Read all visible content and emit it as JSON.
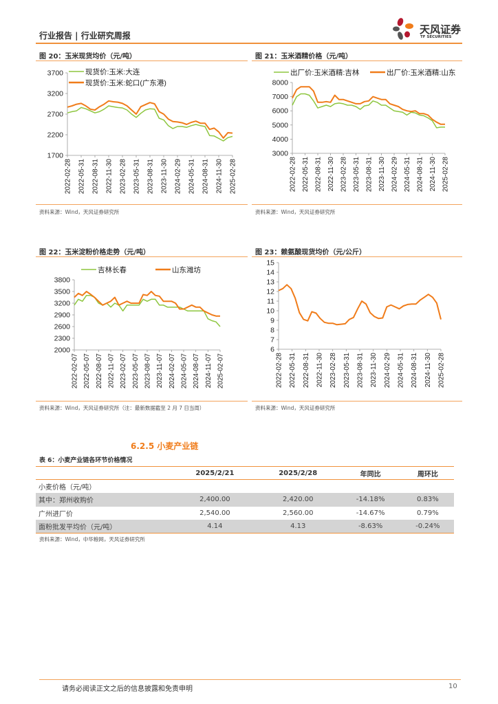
{
  "header": {
    "title": "行业报告 | 行业研究周报",
    "logo_text": "天风证券",
    "logo_sub": "TF SECURITIES"
  },
  "charts": [
    {
      "title": "图 20：玉米现货均价（元/吨）",
      "source": "资料来源：Wind，天风证券研究所",
      "type": "line",
      "yticks": [
        "3700",
        "3200",
        "2700",
        "2200",
        "1700"
      ],
      "ylim": [
        1700,
        3700
      ],
      "xticks": [
        "2022-02-28",
        "2022-05-31",
        "2022-08-31",
        "2022-11-30",
        "2023-02-28",
        "2023-05-31",
        "2023-08-31",
        "2023-11-30",
        "2024-02-29",
        "2024-05-31",
        "2024-08-31",
        "2024-11-30",
        "2025-02-28"
      ],
      "series": [
        {
          "name": "现货价:玉米:大连",
          "color": "#8dc63f",
          "values": [
            2730,
            2760,
            2780,
            2860,
            2830,
            2780,
            2730,
            2760,
            2820,
            2900,
            2880,
            2860,
            2850,
            2800,
            2700,
            2620,
            2720,
            2800,
            2830,
            2820,
            2600,
            2560,
            2420,
            2350,
            2400,
            2400,
            2380,
            2420,
            2450,
            2420,
            2400,
            2180,
            2170,
            2110,
            2050,
            2130,
            2160
          ]
        },
        {
          "name": "现货价:玉米:蛇口(广东港)",
          "color": "#f07c1a",
          "values": [
            2870,
            2900,
            2940,
            2960,
            2900,
            2820,
            2800,
            2880,
            2940,
            3020,
            3000,
            2990,
            2960,
            2900,
            2800,
            2700,
            2880,
            2930,
            2980,
            2950,
            2760,
            2700,
            2580,
            2520,
            2510,
            2490,
            2450,
            2500,
            2530,
            2480,
            2480,
            2330,
            2360,
            2270,
            2120,
            2250,
            2240
          ]
        }
      ]
    },
    {
      "title": "图 21：玉米酒精价格（元/吨）",
      "source": "资料来源：Wind，天风证券研究所",
      "type": "line",
      "yticks": [
        "8000",
        "7000",
        "6000",
        "5000",
        "4000",
        "3000"
      ],
      "ylim": [
        3000,
        8000
      ],
      "xticks": [
        "2022-02-28",
        "2022-05-31",
        "2022-08-31",
        "2022-11-30",
        "2023-02-28",
        "2023-05-31",
        "2023-08-31",
        "2023-11-30",
        "2024-02-29",
        "2024-05-31",
        "2024-08-31",
        "2024-11-30",
        "2025-02-28"
      ],
      "series": [
        {
          "name": "出厂价:玉米酒精:吉林",
          "color": "#8dc63f",
          "values": [
            6400,
            7000,
            7200,
            7200,
            7100,
            6700,
            6200,
            6300,
            6400,
            6300,
            6500,
            6550,
            6500,
            6400,
            6400,
            6300,
            6100,
            6350,
            6400,
            6700,
            6600,
            6400,
            6400,
            6200,
            6000,
            5950,
            5900,
            5700,
            5900,
            5850,
            5700,
            5650,
            5500,
            5300,
            4800,
            4850,
            4850
          ]
        },
        {
          "name": "出厂价:玉米酒精:山东",
          "color": "#f07c1a",
          "values": [
            6900,
            7500,
            7700,
            7700,
            7700,
            7400,
            6600,
            6600,
            6650,
            6600,
            7100,
            6800,
            6800,
            6700,
            6600,
            6500,
            6500,
            6650,
            6700,
            7000,
            6900,
            6800,
            6800,
            6500,
            6400,
            6300,
            6100,
            6000,
            5950,
            6000,
            5800,
            5800,
            5700,
            5400,
            5200,
            5050,
            5050
          ]
        }
      ]
    },
    {
      "title": "图 22：玉米淀粉价格走势（元/吨）",
      "source": "资料来源：Wind，天风证券研究所（注：最新数据截至 2 月 7 日当周）",
      "type": "line",
      "yticks": [
        "3800",
        "3500",
        "3200",
        "2900",
        "2600",
        "2300",
        "2000"
      ],
      "ylim": [
        2000,
        3800
      ],
      "xticks": [
        "2022-02-07",
        "2022-05-07",
        "2022-08-07",
        "2022-11-07",
        "2023-02-07",
        "2023-05-07",
        "2023-08-07",
        "2023-11-07",
        "2024-02-07",
        "2024-05-07",
        "2024-08-07",
        "2024-11-07",
        "2025-02-07"
      ],
      "series": [
        {
          "name": "吉林长春",
          "color": "#8dc63f",
          "values": [
            3150,
            3300,
            3250,
            3400,
            3400,
            3350,
            3200,
            3150,
            3200,
            3100,
            3200,
            3150,
            3000,
            3150,
            3150,
            3150,
            3150,
            3300,
            3250,
            3300,
            3300,
            3150,
            3150,
            3100,
            3100,
            3100,
            3100,
            3050,
            3000,
            3000,
            3000,
            3000,
            3000,
            2800,
            2750,
            2720,
            2600
          ]
        },
        {
          "name": "山东潍坊",
          "color": "#f07c1a",
          "values": [
            3350,
            3450,
            3400,
            3500,
            3430,
            3350,
            3250,
            3150,
            3200,
            3250,
            3350,
            3150,
            3200,
            3250,
            3200,
            3200,
            3200,
            3420,
            3400,
            3500,
            3400,
            3380,
            3250,
            3250,
            3250,
            3200,
            3050,
            3050,
            3100,
            3150,
            3100,
            3100,
            3000,
            2950,
            2900,
            2870,
            2870
          ]
        }
      ]
    },
    {
      "title": "图 23：赖氨酸现货均价（元/公斤）",
      "source": "资料来源：Wind，天风证券研究所",
      "type": "line",
      "yticks": [
        "15",
        "14",
        "13",
        "12",
        "11",
        "10",
        "9",
        "8",
        "7",
        "6"
      ],
      "ylim": [
        6,
        15
      ],
      "xticks": [
        "2022-02-28",
        "2022-05-31",
        "2022-08-31",
        "2022-11-30",
        "2023-02-28",
        "2023-05-31",
        "2023-08-31",
        "2023-11-30",
        "2024-02-29",
        "2024-05-31",
        "2024-08-31",
        "2024-11-30",
        "2025-02-28"
      ],
      "series": [
        {
          "color": "#f07c1a",
          "values": [
            12.1,
            12.3,
            12.7,
            12.3,
            11.3,
            9.8,
            9.1,
            8.95,
            9.9,
            9.75,
            9.2,
            8.8,
            8.7,
            8.7,
            8.55,
            8.6,
            8.65,
            9.1,
            9.3,
            10.2,
            11.0,
            10.7,
            9.8,
            9.4,
            9.2,
            9.25,
            10.4,
            10.6,
            10.4,
            10.2,
            10.5,
            10.65,
            10.7,
            10.7,
            11.1,
            11.4,
            11.7,
            11.4,
            10.8,
            9.1
          ]
        }
      ]
    }
  ],
  "section": {
    "title": "6.2.5 小麦产业链"
  },
  "table": {
    "caption": "表 6：小麦产业链各环节价格情况",
    "headers": [
      "",
      "2025/2/21",
      "2025/2/28",
      "年同比",
      "周环比"
    ],
    "rows": [
      [
        "小麦价格（元/吨）",
        "",
        "",
        "",
        ""
      ],
      [
        "其中：郑州收购价",
        "2,400.00",
        "2,420.00",
        "-14.18%",
        "0.83%"
      ],
      [
        "广州进厂价",
        "2,540.00",
        "2,560.00",
        "-14.67%",
        "0.79%"
      ],
      [
        "面粉批发平均价（元/吨）",
        "4.14",
        "4.13",
        "-8.63%",
        "-0.24%"
      ]
    ],
    "source": "资料来源：Wind，中华粮网，天风证券研究所"
  },
  "footer": {
    "disclaimer": "请务必阅读正文之后的信息披露和免责申明",
    "page": "10"
  }
}
